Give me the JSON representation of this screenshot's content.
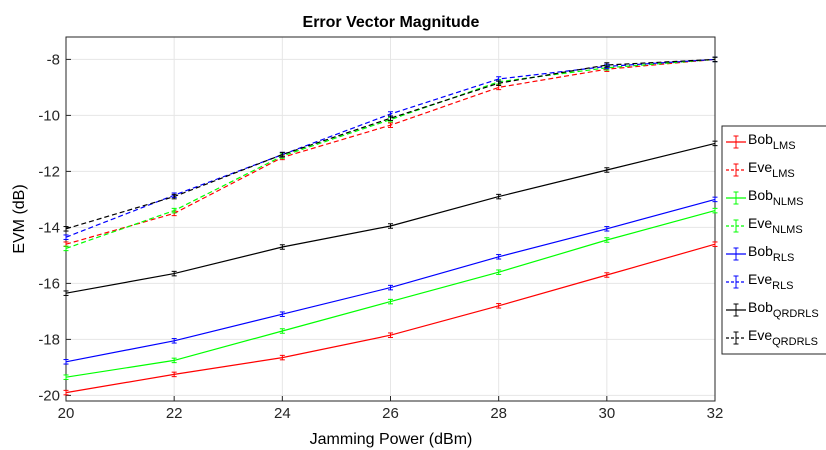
{
  "chart_data": {
    "type": "line",
    "title": "Error Vector Magnitude",
    "xlabel": "Jamming Power (dBm)",
    "ylabel": "EVM (dB)",
    "xlim": [
      20,
      32
    ],
    "ylim": [
      -20.2,
      -7.2
    ],
    "xticks": [
      20,
      22,
      24,
      26,
      28,
      30,
      32
    ],
    "yticks": [
      -20,
      -18,
      -16,
      -14,
      -12,
      -10,
      -8
    ],
    "grid": true,
    "legend_position": "right, outside plot area",
    "error_bars": true,
    "series": [
      {
        "name": "Bob",
        "sub": "LMS",
        "color": "#ff0000",
        "dashed": false,
        "x": [
          20,
          22,
          24,
          26,
          28,
          30,
          32
        ],
        "y": [
          -19.9,
          -19.25,
          -18.65,
          -17.85,
          -16.8,
          -15.7,
          -14.6
        ]
      },
      {
        "name": "Eve",
        "sub": "LMS",
        "color": "#ff0000",
        "dashed": true,
        "x": [
          20,
          22,
          24,
          26,
          28,
          30,
          32
        ],
        "y": [
          -14.6,
          -13.5,
          -11.5,
          -10.35,
          -9.0,
          -8.35,
          -8.0
        ]
      },
      {
        "name": "Bob",
        "sub": "NLMS",
        "color": "#00ff00",
        "dashed": false,
        "x": [
          20,
          22,
          24,
          26,
          28,
          30,
          32
        ],
        "y": [
          -19.35,
          -18.75,
          -17.7,
          -16.65,
          -15.6,
          -14.45,
          -13.4
        ]
      },
      {
        "name": "Eve",
        "sub": "NLMS",
        "color": "#00ff00",
        "dashed": true,
        "x": [
          20,
          22,
          24,
          26,
          28,
          30,
          32
        ],
        "y": [
          -14.75,
          -13.4,
          -11.45,
          -10.15,
          -8.8,
          -8.3,
          -8.0
        ]
      },
      {
        "name": "Bob",
        "sub": "RLS",
        "color": "#0000ff",
        "dashed": false,
        "x": [
          20,
          22,
          24,
          26,
          28,
          30,
          32
        ],
        "y": [
          -18.8,
          -18.05,
          -17.1,
          -16.15,
          -15.05,
          -14.05,
          -13.0
        ]
      },
      {
        "name": "Eve",
        "sub": "RLS",
        "color": "#0000ff",
        "dashed": true,
        "x": [
          20,
          22,
          24,
          26,
          28,
          30,
          32
        ],
        "y": [
          -14.35,
          -12.85,
          -11.4,
          -9.95,
          -8.7,
          -8.25,
          -8.0
        ]
      },
      {
        "name": "Bob",
        "sub": "QRDRLS",
        "color": "#000000",
        "dashed": false,
        "x": [
          20,
          22,
          24,
          26,
          28,
          30,
          32
        ],
        "y": [
          -16.35,
          -15.65,
          -14.7,
          -13.95,
          -12.9,
          -11.95,
          -11.0
        ]
      },
      {
        "name": "Eve",
        "sub": "QRDRLS",
        "color": "#000000",
        "dashed": true,
        "x": [
          20,
          22,
          24,
          26,
          28,
          30,
          32
        ],
        "y": [
          -14.05,
          -12.9,
          -11.4,
          -10.1,
          -8.85,
          -8.2,
          -8.0
        ]
      }
    ]
  }
}
